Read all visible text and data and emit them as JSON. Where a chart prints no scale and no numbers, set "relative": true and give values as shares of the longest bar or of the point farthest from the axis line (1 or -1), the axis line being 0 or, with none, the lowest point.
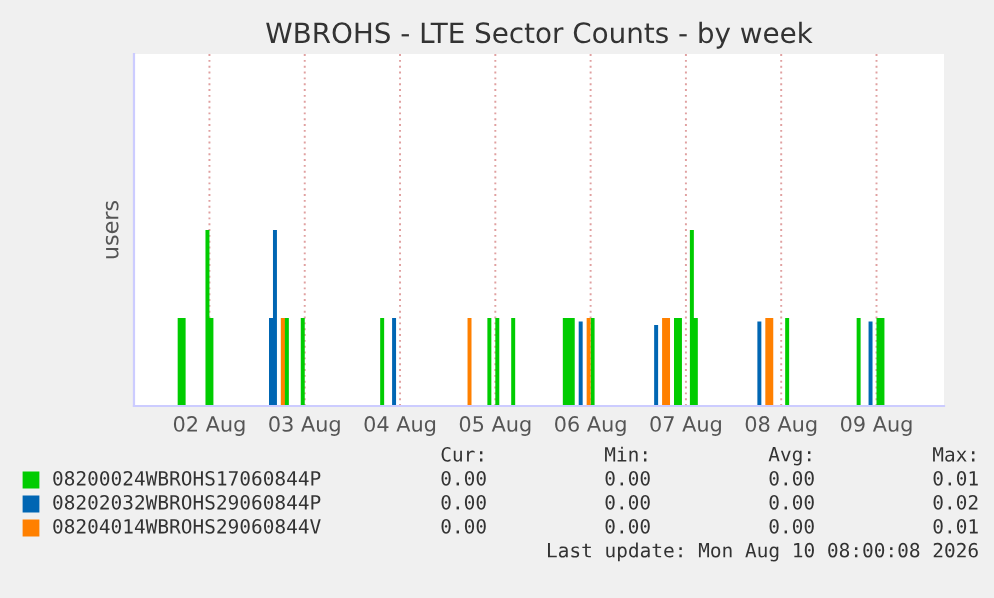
{
  "chart_data": {
    "type": "area",
    "title": "WBROHS - LTE Sector Counts - by week",
    "ylabel": "users",
    "xlim": [
      "2026-08-01T17:00",
      "2026-08-10T05:00"
    ],
    "xticks": [
      {
        "value": "2026-08-02T12:00",
        "label": "02 Aug"
      },
      {
        "value": "2026-08-03T12:00",
        "label": "03 Aug"
      },
      {
        "value": "2026-08-04T12:00",
        "label": "04 Aug"
      },
      {
        "value": "2026-08-05T12:00",
        "label": "05 Aug"
      },
      {
        "value": "2026-08-06T12:00",
        "label": "06 Aug"
      },
      {
        "value": "2026-08-07T12:00",
        "label": "07 Aug"
      },
      {
        "value": "2026-08-08T12:00",
        "label": "08 Aug"
      },
      {
        "value": "2026-08-09T12:00",
        "label": "09 Aug"
      }
    ],
    "relative": true,
    "grid": "x",
    "legend": "bottom",
    "series": [
      {
        "name": "08200024WBROHS17060844P",
        "color": "#00cc00",
        "x": [
          "2026-08-02T04:00",
          "2026-08-02T04:00",
          "2026-08-02T06:00",
          "2026-08-02T06:00",
          "2026-08-02T11:00",
          "2026-08-02T11:00",
          "2026-08-02T12:00",
          "2026-08-02T12:00",
          "2026-08-02T13:00",
          "2026-08-02T13:00",
          "2026-08-03T06:00",
          "2026-08-03T06:00",
          "2026-08-03T08:00",
          "2026-08-03T08:00",
          "2026-08-03T11:00",
          "2026-08-03T11:00",
          "2026-08-03T12:00",
          "2026-08-03T12:00",
          "2026-08-04T07:00",
          "2026-08-04T07:00",
          "2026-08-04T08:00",
          "2026-08-04T08:00",
          "2026-08-05T10:00",
          "2026-08-05T10:00",
          "2026-08-05T11:00",
          "2026-08-05T11:00",
          "2026-08-05T12:00",
          "2026-08-05T12:00",
          "2026-08-05T13:00",
          "2026-08-05T13:00",
          "2026-08-05T16:00",
          "2026-08-05T16:00",
          "2026-08-05T17:00",
          "2026-08-05T17:00",
          "2026-08-06T05:00",
          "2026-08-06T05:00",
          "2026-08-06T08:00",
          "2026-08-06T08:00",
          "2026-08-06T12:00",
          "2026-08-06T12:00",
          "2026-08-06T13:00",
          "2026-08-06T13:00",
          "2026-08-07T09:00",
          "2026-08-07T09:00",
          "2026-08-07T11:00",
          "2026-08-07T11:00",
          "2026-08-07T13:00",
          "2026-08-07T13:00",
          "2026-08-07T14:00",
          "2026-08-07T14:00",
          "2026-08-07T15:00",
          "2026-08-07T15:00",
          "2026-08-08T13:00",
          "2026-08-08T13:00",
          "2026-08-08T14:00",
          "2026-08-08T14:00",
          "2026-08-09T07:00",
          "2026-08-09T07:00",
          "2026-08-09T08:00",
          "2026-08-09T08:00",
          "2026-08-09T12:00",
          "2026-08-09T12:00",
          "2026-08-09T14:00",
          "2026-08-09T14:00"
        ],
        "values": [
          0,
          0.5,
          0.5,
          0,
          0,
          1,
          1,
          0.5,
          0.5,
          0,
          0,
          0.5,
          0.5,
          0,
          0,
          0.5,
          0.5,
          0,
          0,
          0.5,
          0.5,
          0,
          0,
          0.5,
          0.5,
          0,
          0,
          0.5,
          0.5,
          0,
          0,
          0.5,
          0.5,
          0,
          0,
          0.5,
          0.5,
          0,
          0,
          0.5,
          0.5,
          0,
          0,
          0.5,
          0.5,
          0,
          0,
          1,
          1,
          0.5,
          0.5,
          0,
          0,
          0.5,
          0.5,
          0,
          0,
          0.5,
          0.5,
          0,
          0,
          0.5,
          0.5,
          0
        ]
      },
      {
        "name": "08202032WBROHS29060844P",
        "color": "#0066b3",
        "x": [
          "2026-08-03T03:00",
          "2026-08-03T03:00",
          "2026-08-03T04:00",
          "2026-08-03T04:00",
          "2026-08-03T05:00",
          "2026-08-03T05:00",
          "2026-08-04T10:00",
          "2026-08-04T10:00",
          "2026-08-04T11:00",
          "2026-08-04T11:00",
          "2026-08-06T09:00",
          "2026-08-06T09:00",
          "2026-08-06T10:00",
          "2026-08-06T10:00",
          "2026-08-07T04:00",
          "2026-08-07T04:00",
          "2026-08-07T05:00",
          "2026-08-07T05:00",
          "2026-08-08T06:00",
          "2026-08-08T06:00",
          "2026-08-08T07:00",
          "2026-08-08T07:00",
          "2026-08-09T10:00",
          "2026-08-09T10:00",
          "2026-08-09T11:00",
          "2026-08-09T11:00"
        ],
        "values": [
          0,
          0.5,
          0.5,
          1,
          1,
          0,
          0,
          0.5,
          0.5,
          0,
          0,
          0.48,
          0.48,
          0,
          0,
          0.46,
          0.46,
          0,
          0,
          0.48,
          0.48,
          0,
          0,
          0.48,
          0.48,
          0
        ]
      },
      {
        "name": "08204014WBROHS29060844V",
        "color": "#ff8000",
        "x": [
          "2026-08-03T06:00",
          "2026-08-03T06:00",
          "2026-08-03T07:00",
          "2026-08-03T07:00",
          "2026-08-05T05:00",
          "2026-08-05T05:00",
          "2026-08-05T06:00",
          "2026-08-05T06:00",
          "2026-08-06T11:00",
          "2026-08-06T11:00",
          "2026-08-06T12:00",
          "2026-08-06T12:00",
          "2026-08-07T06:00",
          "2026-08-07T06:00",
          "2026-08-07T08:00",
          "2026-08-07T08:00",
          "2026-08-08T08:00",
          "2026-08-08T08:00",
          "2026-08-08T10:00",
          "2026-08-08T10:00"
        ],
        "values": [
          0,
          0.5,
          0.5,
          0,
          0,
          0.5,
          0.5,
          0,
          0,
          0.5,
          0.5,
          0,
          0,
          0.5,
          0.5,
          0,
          0,
          0.5,
          0.5,
          0
        ]
      }
    ],
    "annotations": [
      "Cur:",
      "Min:",
      "Avg:",
      "Max:",
      "0.00",
      "0.00",
      "0.00",
      "0.01",
      "0.00",
      "0.00",
      "0.00",
      "0.02",
      "0.00",
      "0.00",
      "0.00",
      "0.01",
      "Last update: Mon Aug 10 08:00:08 2026"
    ]
  }
}
